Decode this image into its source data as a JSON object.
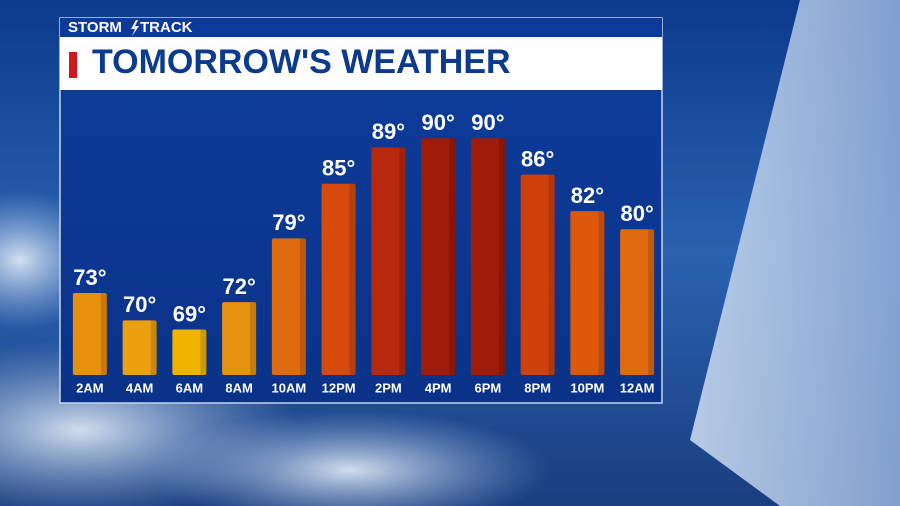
{
  "chart_data": {
    "type": "bar",
    "brand": [
      "STORM",
      "TRACK"
    ],
    "title": "TOMORROW'S WEATHER",
    "categories": [
      "2AM",
      "4AM",
      "6AM",
      "8AM",
      "10AM",
      "12PM",
      "2PM",
      "4PM",
      "6PM",
      "8PM",
      "10PM",
      "12AM"
    ],
    "values": [
      73,
      70,
      69,
      72,
      79,
      85,
      89,
      90,
      90,
      86,
      82,
      80
    ],
    "value_labels": [
      "73°",
      "70°",
      "69°",
      "72°",
      "79°",
      "85°",
      "89°",
      "90°",
      "90°",
      "86°",
      "82°",
      "80°"
    ],
    "colors": [
      "#e8900c",
      "#eca010",
      "#f0b400",
      "#e89212",
      "#e06a10",
      "#d84a0c",
      "#b8280c",
      "#a01c08",
      "#a01c08",
      "#d0400a",
      "#de580c",
      "#e06a10"
    ],
    "ylim": [
      64,
      92
    ]
  }
}
